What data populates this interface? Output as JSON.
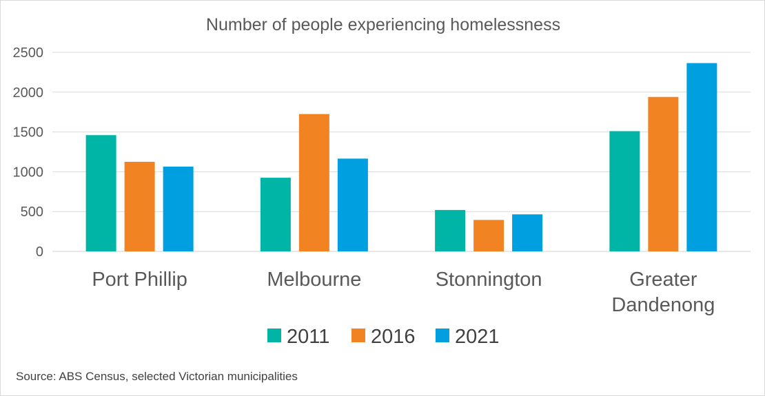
{
  "chart_data": {
    "type": "bar",
    "title": "Number of people experiencing homelessness",
    "categories": [
      [
        "Port Phillip"
      ],
      [
        "Melbourne"
      ],
      [
        "Stonnington"
      ],
      [
        "Greater",
        "Dandenong"
      ]
    ],
    "series": [
      {
        "name": "2011",
        "color": "#00b5a5",
        "values": [
          1460,
          925,
          520,
          1510
        ]
      },
      {
        "name": "2016",
        "color": "#f28322",
        "values": [
          1125,
          1725,
          395,
          1940
        ]
      },
      {
        "name": "2021",
        "color": "#009fdf",
        "values": [
          1065,
          1165,
          465,
          2365
        ]
      }
    ],
    "ylim": [
      0,
      2500
    ],
    "yticks": [
      0,
      500,
      1000,
      1500,
      2000,
      2500
    ],
    "xlabel": "",
    "ylabel": "",
    "grid": true,
    "legend_position": "bottom"
  },
  "source": "Source: ABS Census, selected Victorian municipalities"
}
